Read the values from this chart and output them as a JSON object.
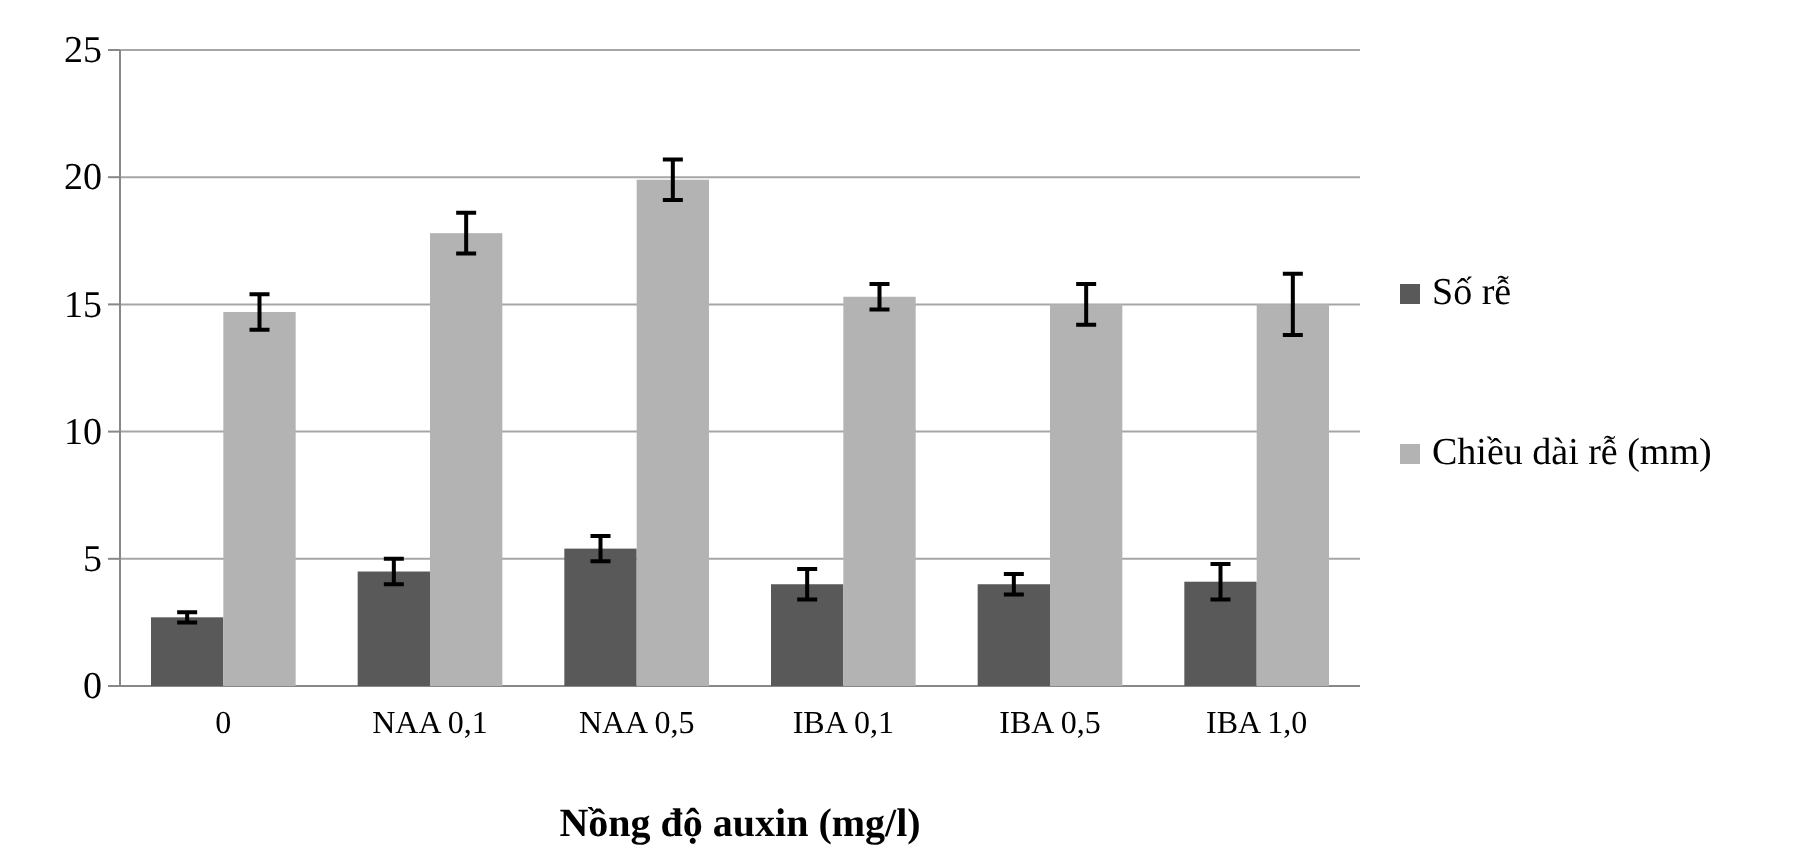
{
  "chart_data": {
    "type": "bar",
    "xlabel": "Nồng độ auxin (mg/l)",
    "categories": [
      "0",
      "NAA 0,1",
      "NAA 0,5",
      "IBA 0,1",
      "IBA 0,5",
      "IBA 1,0"
    ],
    "series": [
      {
        "name": "Số rễ",
        "color": "#595959",
        "values": [
          2.7,
          4.5,
          5.4,
          4.0,
          4.0,
          4.1
        ],
        "errors": [
          0.2,
          0.5,
          0.5,
          0.6,
          0.4,
          0.7
        ]
      },
      {
        "name": "Chiều dài rễ (mm)",
        "color": "#b3b3b3",
        "values": [
          14.7,
          17.8,
          19.9,
          15.3,
          15.0,
          15.0
        ],
        "errors": [
          0.7,
          0.8,
          0.8,
          0.5,
          0.8,
          1.2
        ]
      }
    ],
    "ylim": [
      0,
      25
    ],
    "yticks": [
      0,
      5,
      10,
      15,
      20,
      25
    ],
    "grid": "y",
    "legend": "right"
  }
}
